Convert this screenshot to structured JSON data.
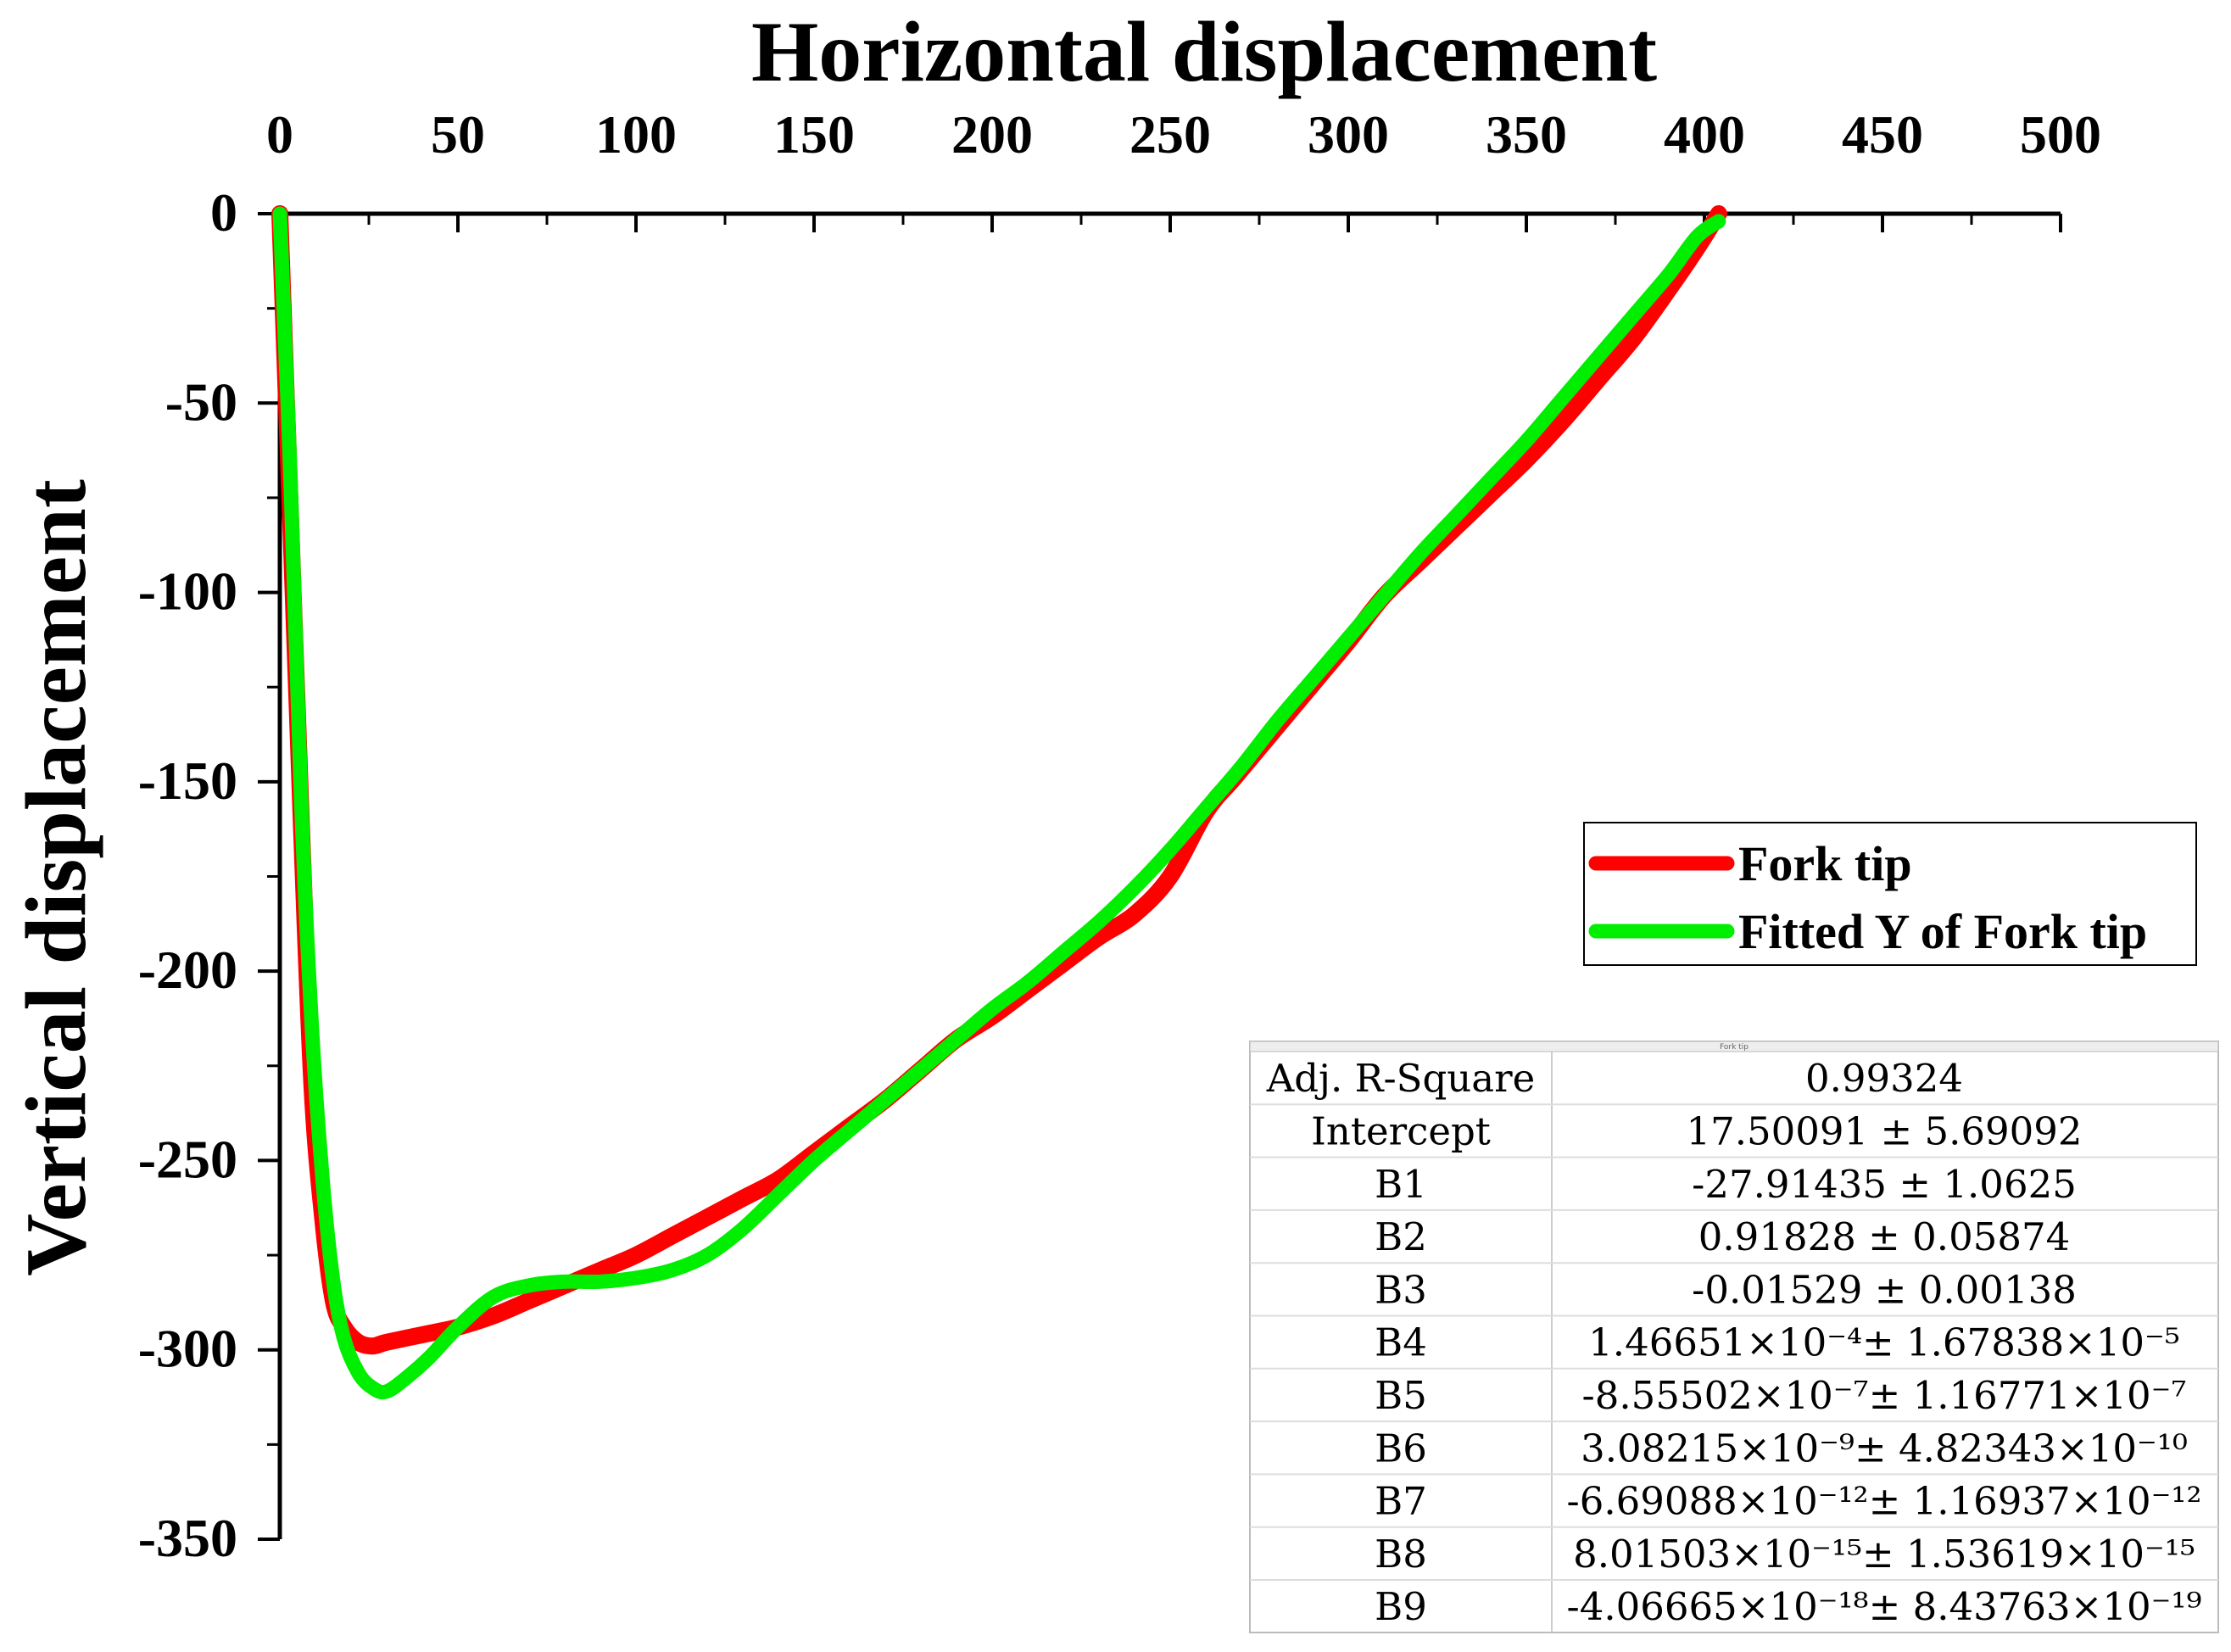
{
  "chart_data": {
    "type": "line",
    "title": "",
    "xlabel": "Horizontal displacement",
    "ylabel": "Vertical displacement",
    "xlim": [
      0,
      500
    ],
    "ylim": [
      -350,
      0
    ],
    "xticks": [
      "0",
      "50",
      "100",
      "150",
      "200",
      "250",
      "300",
      "350",
      "400",
      "450",
      "500"
    ],
    "yticks": [
      "0",
      "-50",
      "-100",
      "-150",
      "-200",
      "-250",
      "-300",
      "-350"
    ],
    "xaxis_position": "top",
    "grid": false,
    "legend_position": "right-middle",
    "colors": {
      "fork_tip": "#ff0000",
      "fitted": "#00ee00"
    },
    "series": [
      {
        "name": "Fork tip",
        "color": "#ff0000",
        "x": [
          0,
          3,
          6,
          9,
          12,
          15,
          18,
          22,
          26,
          30,
          40,
          50,
          60,
          70,
          80,
          90,
          100,
          110,
          120,
          130,
          140,
          150,
          160,
          170,
          180,
          190,
          200,
          210,
          220,
          230,
          240,
          250,
          260,
          268,
          276,
          284,
          292,
          300,
          310,
          320,
          330,
          340,
          350,
          360,
          370,
          380,
          390,
          398,
          404
        ],
        "y": [
          0,
          -80,
          -160,
          -230,
          -265,
          -287,
          -294,
          -298,
          -299,
          -298,
          -296,
          -294,
          -291,
          -287,
          -283,
          -279,
          -275,
          -270,
          -265,
          -260,
          -255,
          -248,
          -241,
          -234,
          -226,
          -218,
          -212,
          -205,
          -198,
          -191,
          -185,
          -175,
          -158,
          -149,
          -140,
          -131,
          -122,
          -113,
          -101,
          -92,
          -83,
          -74,
          -65,
          -55,
          -44,
          -33,
          -20,
          -9,
          0
        ]
      },
      {
        "name": "Fitted Y of Fork tip",
        "color": "#00ee00",
        "x": [
          0,
          3,
          6,
          9,
          12,
          15,
          18,
          22,
          26,
          30,
          36,
          42,
          50,
          60,
          70,
          80,
          90,
          100,
          110,
          120,
          130,
          140,
          150,
          160,
          170,
          180,
          190,
          200,
          210,
          220,
          230,
          240,
          250,
          260,
          270,
          280,
          290,
          300,
          310,
          320,
          330,
          340,
          350,
          360,
          370,
          380,
          390,
          398,
          404
        ],
        "y": [
          0,
          -70,
          -155,
          -215,
          -255,
          -282,
          -297,
          -306,
          -310,
          -311,
          -307,
          -302,
          -294,
          -286,
          -283,
          -282,
          -282,
          -281,
          -279,
          -275,
          -268,
          -259,
          -250,
          -242,
          -234,
          -226,
          -218,
          -210,
          -203,
          -195,
          -187,
          -178,
          -168,
          -157,
          -146,
          -134,
          -123,
          -112,
          -101,
          -90,
          -80,
          -70,
          -60,
          -49,
          -38,
          -27,
          -16,
          -6,
          -2
        ]
      }
    ],
    "fit_table": {
      "header": "Fork tip",
      "rows": [
        {
          "label": "Adj. R-Square",
          "value": "0.99324"
        },
        {
          "label": "Intercept",
          "value": "17.50091 ± 5.69092"
        },
        {
          "label": "B1",
          "value": "-27.91435 ± 1.0625"
        },
        {
          "label": "B2",
          "value": "0.91828 ± 0.05874"
        },
        {
          "label": "B3",
          "value": "-0.01529 ± 0.00138"
        },
        {
          "label": "B4",
          "value": "1.46651×10⁻⁴± 1.67838×10⁻⁵"
        },
        {
          "label": "B5",
          "value": "-8.55502×10⁻⁷± 1.16771×10⁻⁷"
        },
        {
          "label": "B6",
          "value": "3.08215×10⁻⁹± 4.82343×10⁻¹⁰"
        },
        {
          "label": "B7",
          "value": "-6.69088×10⁻¹²± 1.16937×10⁻¹²"
        },
        {
          "label": "B8",
          "value": "8.01503×10⁻¹⁵± 1.53619×10⁻¹⁵"
        },
        {
          "label": "B9",
          "value": "-4.06665×10⁻¹⁸± 8.43763×10⁻¹⁹"
        }
      ]
    }
  }
}
